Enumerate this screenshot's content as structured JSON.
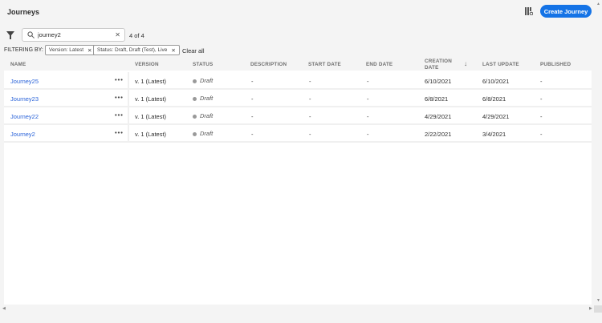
{
  "header": {
    "title": "Journeys",
    "create_label": "Create Journey",
    "settings_icon": "column-settings-icon"
  },
  "search": {
    "value": "journey2",
    "count": "4 of 4"
  },
  "filters": {
    "label": "FILTERING BY:",
    "chips": [
      "Version: Latest",
      "Status: Draft, Draft (Test), Live"
    ],
    "clear_label": "Clear all"
  },
  "columns": [
    "NAME",
    "VERSION",
    "STATUS",
    "DESCRIPTION",
    "START DATE",
    "END DATE",
    "CREATION DATE",
    "LAST UPDATE",
    "PUBLISHED"
  ],
  "sort": {
    "column": "CREATION DATE",
    "direction": "descending"
  },
  "rows": [
    {
      "name": "Journey25",
      "version": "v. 1 (Latest)",
      "status": "Draft",
      "description": "-",
      "start": "-",
      "end": "-",
      "created": "6/10/2021",
      "updated": "6/10/2021",
      "published": "-"
    },
    {
      "name": "Journey23",
      "version": "v. 1 (Latest)",
      "status": "Draft",
      "description": "-",
      "start": "-",
      "end": "-",
      "created": "6/8/2021",
      "updated": "6/8/2021",
      "published": "-"
    },
    {
      "name": "Journey22",
      "version": "v. 1 (Latest)",
      "status": "Draft",
      "description": "-",
      "start": "-",
      "end": "-",
      "created": "4/29/2021",
      "updated": "4/29/2021",
      "published": "-"
    },
    {
      "name": "Journey2",
      "version": "v. 1 (Latest)",
      "status": "Draft",
      "description": "-",
      "start": "-",
      "end": "-",
      "created": "2/22/2021",
      "updated": "3/4/2021",
      "published": "-"
    }
  ]
}
